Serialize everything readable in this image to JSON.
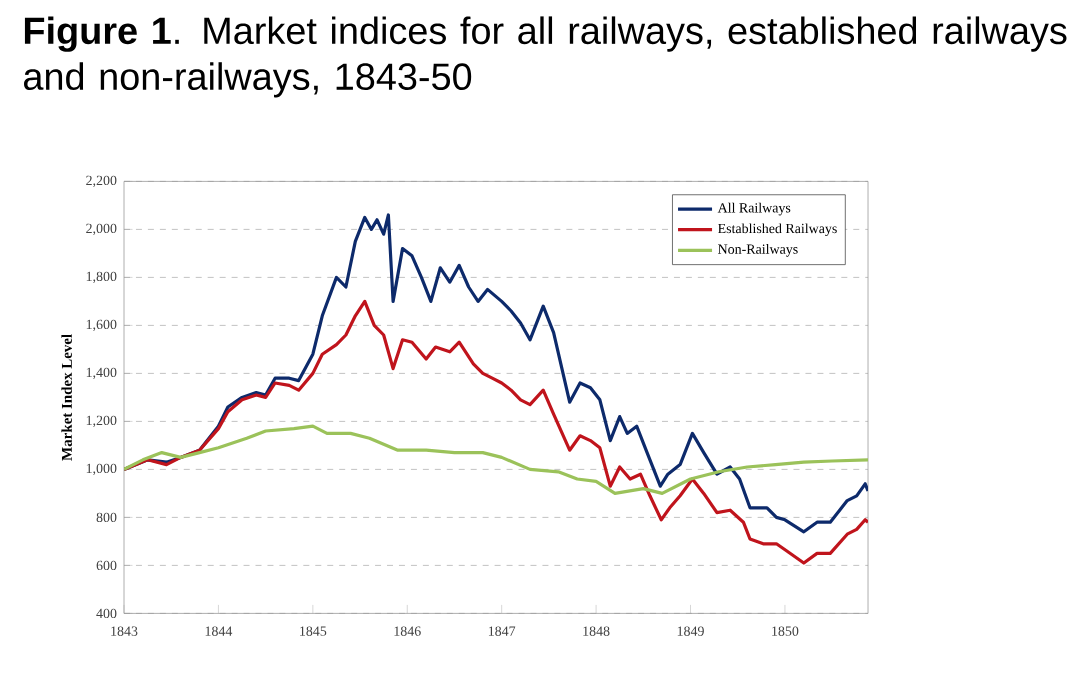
{
  "chart_data": {
    "type": "line",
    "title": "**Figure 1**. Market indices for all railways, established railways and non-railways, 1843-50",
    "ylabel": "Market Index Level",
    "xlim": [
      1843,
      1850.88
    ],
    "xticks": [
      1843,
      1844,
      1845,
      1846,
      1847,
      1848,
      1849,
      1850
    ],
    "ylim": [
      400,
      2200
    ],
    "yticks": [
      400,
      600,
      800,
      {
        "value": 1000,
        "label": "1,000"
      },
      {
        "value": 1200,
        "label": "1,200"
      },
      {
        "value": 1400,
        "label": "1,400"
      },
      {
        "value": 1600,
        "label": "1,600"
      },
      {
        "value": 1800,
        "label": "1,800"
      },
      {
        "value": 2000,
        "label": "2,000"
      },
      {
        "value": 2200,
        "label": "2,200"
      }
    ],
    "grid": "y",
    "legend": "top right",
    "line_style": "solid",
    "series": [
      {
        "name": "All Railways",
        "color": "#0d2a6b",
        "x": [
          1843.0,
          1843.25,
          1843.45,
          1843.6,
          1843.8,
          1844.0,
          1844.1,
          1844.25,
          1844.4,
          1844.5,
          1844.6,
          1844.75,
          1844.85,
          1845.0,
          1845.1,
          1845.25,
          1845.35,
          1845.45,
          1845.55,
          1845.62,
          1845.68,
          1845.75,
          1845.8,
          1845.85,
          1845.95,
          1846.05,
          1846.15,
          1846.25,
          1846.35,
          1846.45,
          1846.55,
          1846.65,
          1846.75,
          1846.85,
          1847.0,
          1847.1,
          1847.2,
          1847.3,
          1847.44,
          1847.55,
          1847.72,
          1847.83,
          1847.94,
          1848.04,
          1848.15,
          1848.25,
          1848.33,
          1848.43,
          1848.54,
          1848.68,
          1848.76,
          1848.89,
          1849.02,
          1849.14,
          1849.28,
          1849.42,
          1849.52,
          1849.63,
          1849.81,
          1849.91,
          1850.0,
          1850.2,
          1850.34,
          1850.48,
          1850.66,
          1850.76,
          1850.85,
          1850.88
        ],
        "values": [
          1000,
          1040,
          1030,
          1050,
          1080,
          1180,
          1260,
          1300,
          1320,
          1310,
          1380,
          1380,
          1370,
          1480,
          1640,
          1800,
          1760,
          1950,
          2050,
          2000,
          2040,
          1980,
          2060,
          1700,
          1920,
          1890,
          1800,
          1700,
          1840,
          1780,
          1850,
          1760,
          1700,
          1750,
          1700,
          1660,
          1610,
          1540,
          1680,
          1570,
          1280,
          1360,
          1340,
          1290,
          1120,
          1220,
          1150,
          1180,
          1070,
          930,
          980,
          1020,
          1150,
          1070,
          980,
          1010,
          960,
          840,
          840,
          800,
          790,
          740,
          780,
          780,
          870,
          890,
          940,
          910
        ]
      },
      {
        "name": "Established Railways",
        "color": "#c0141c",
        "x": [
          1843.0,
          1843.25,
          1843.45,
          1843.6,
          1843.8,
          1844.0,
          1844.1,
          1844.25,
          1844.4,
          1844.5,
          1844.6,
          1844.75,
          1844.85,
          1845.0,
          1845.1,
          1845.25,
          1845.35,
          1845.45,
          1845.55,
          1845.65,
          1845.75,
          1845.85,
          1845.95,
          1846.05,
          1846.2,
          1846.3,
          1846.45,
          1846.55,
          1846.7,
          1846.8,
          1846.9,
          1847.0,
          1847.1,
          1847.2,
          1847.3,
          1847.44,
          1847.55,
          1847.72,
          1847.83,
          1847.94,
          1848.04,
          1848.15,
          1848.25,
          1848.36,
          1848.47,
          1848.57,
          1848.69,
          1848.78,
          1848.89,
          1849.02,
          1849.14,
          1849.28,
          1849.42,
          1849.56,
          1849.63,
          1849.77,
          1849.91,
          1850.02,
          1850.2,
          1850.34,
          1850.48,
          1850.66,
          1850.76,
          1850.85,
          1850.88
        ],
        "values": [
          1000,
          1040,
          1020,
          1050,
          1080,
          1170,
          1240,
          1290,
          1310,
          1300,
          1360,
          1350,
          1330,
          1400,
          1480,
          1520,
          1560,
          1640,
          1700,
          1600,
          1560,
          1420,
          1540,
          1530,
          1460,
          1510,
          1490,
          1530,
          1440,
          1400,
          1380,
          1360,
          1330,
          1290,
          1270,
          1330,
          1230,
          1080,
          1140,
          1120,
          1090,
          930,
          1010,
          960,
          980,
          890,
          790,
          840,
          890,
          960,
          900,
          820,
          830,
          780,
          710,
          690,
          690,
          660,
          610,
          650,
          650,
          730,
          750,
          790,
          780
        ]
      },
      {
        "name": "Non-Railways",
        "color": "#9bc25a",
        "x": [
          1843.0,
          1843.2,
          1843.4,
          1843.6,
          1843.8,
          1844.0,
          1844.3,
          1844.5,
          1844.8,
          1845.0,
          1845.15,
          1845.4,
          1845.6,
          1845.9,
          1846.2,
          1846.5,
          1846.8,
          1847.0,
          1847.3,
          1847.6,
          1847.8,
          1848.0,
          1848.2,
          1848.5,
          1848.7,
          1849.0,
          1849.3,
          1849.6,
          1849.9,
          1850.2,
          1850.5,
          1850.88
        ],
        "values": [
          1000,
          1040,
          1070,
          1050,
          1070,
          1090,
          1130,
          1160,
          1170,
          1180,
          1150,
          1150,
          1130,
          1080,
          1080,
          1070,
          1070,
          1050,
          1000,
          990,
          960,
          950,
          900,
          920,
          900,
          960,
          990,
          1010,
          1020,
          1030,
          1035,
          1040
        ]
      }
    ]
  }
}
